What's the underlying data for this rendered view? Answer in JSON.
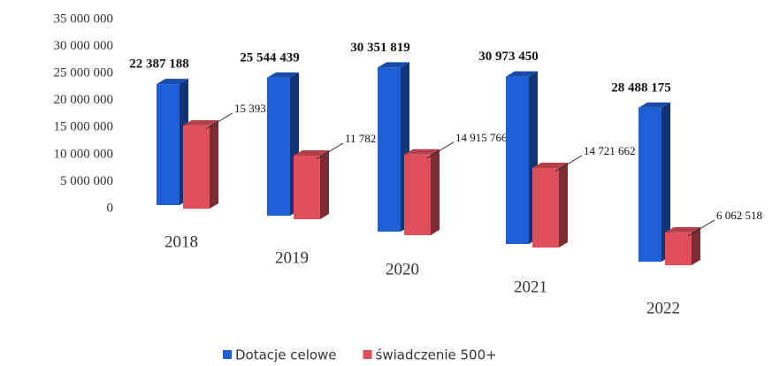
{
  "chart_data": {
    "type": "bar",
    "categories": [
      "2018",
      "2019",
      "2020",
      "2021",
      "2022"
    ],
    "series": [
      {
        "name": "Dotacje celowe",
        "color": "#1f5fd6",
        "values": [
          22387188,
          25544439,
          30351819,
          30973450,
          28488175
        ],
        "value_labels": [
          "22 387 188",
          "25 544 439",
          "30 351 819",
          "30 973 450",
          "28 488 175"
        ]
      },
      {
        "name": "świadczenie 500+",
        "color": "#e0505a",
        "values": [
          15393114,
          11782553,
          14915766,
          14721662,
          6062518
        ],
        "value_labels": [
          "15 393 114",
          "11 782 553",
          "14 915 766",
          "14 721 662",
          "6 062 518"
        ]
      }
    ],
    "ylim": [
      0,
      35000000
    ],
    "yticks": [
      0,
      {
        "value": 5000000,
        "label": "5 000 000"
      },
      {
        "value": 10000000,
        "label": "10 000 000"
      },
      {
        "value": 15000000,
        "label": "15 000 000"
      },
      {
        "value": 20000000,
        "label": "20 000 000"
      },
      {
        "value": 25000000,
        "label": "25 000 000"
      },
      {
        "value": 30000000,
        "label": "30 000 000"
      },
      {
        "value": 35000000,
        "label": "35 000 000"
      }
    ],
    "legend": "bottom"
  }
}
